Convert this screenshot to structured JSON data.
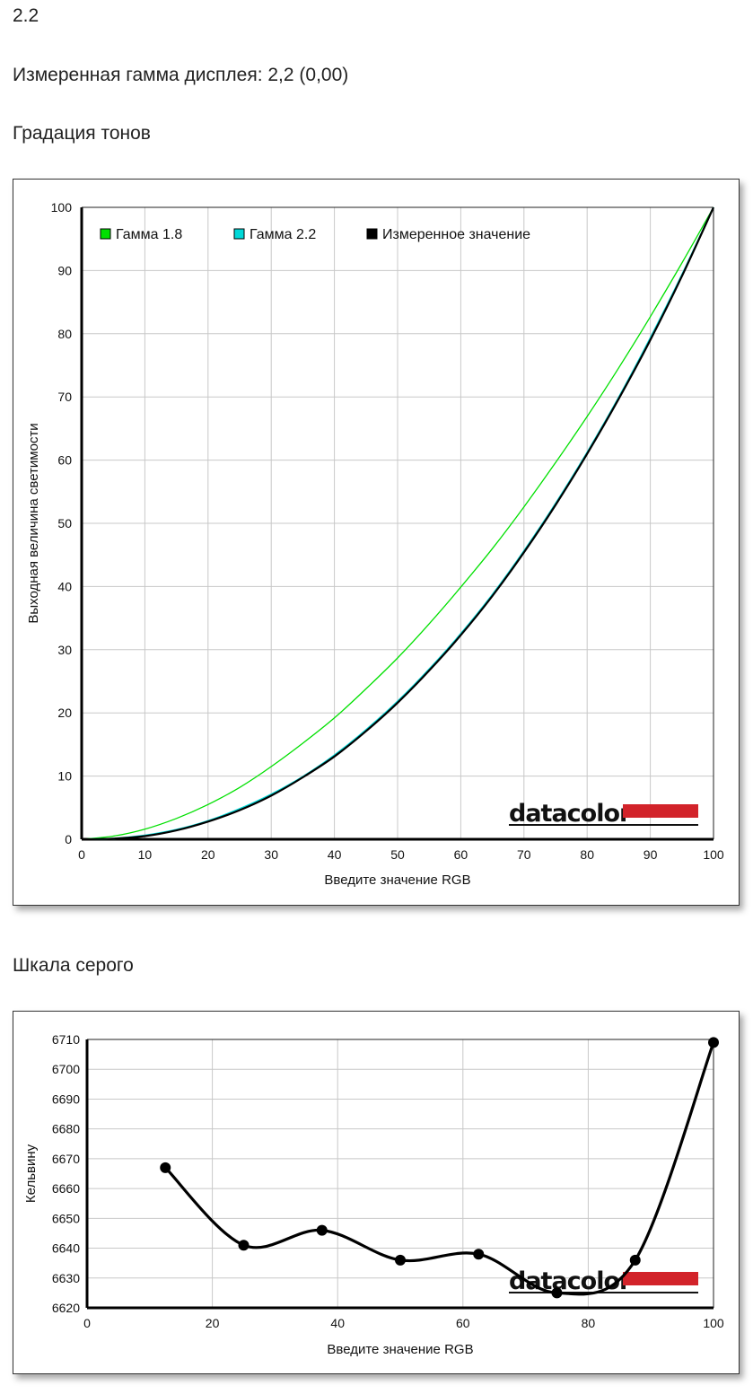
{
  "header": {
    "gamma_value": "2.2",
    "measured_text": "Измеренная гамма дисплея: 2,2 (0,00)",
    "tones_title": "Градация тонов",
    "gray_title": "Шкала серого"
  },
  "logo": {
    "text": "datacolor",
    "color": "#d2232a"
  },
  "chart_data": [
    {
      "type": "line",
      "xlabel": "Введите значение RGB",
      "ylabel": "Выходная величина светимости",
      "xlim": [
        0,
        100
      ],
      "ylim": [
        0,
        100
      ],
      "xticks": [
        0,
        10,
        20,
        30,
        40,
        50,
        60,
        70,
        80,
        90,
        100
      ],
      "yticks": [
        0,
        10,
        20,
        30,
        40,
        50,
        60,
        70,
        80,
        90,
        100
      ],
      "grid": true,
      "legend_position": "top-left",
      "x": [
        0,
        5,
        10,
        15,
        20,
        25,
        30,
        35,
        40,
        45,
        50,
        55,
        60,
        65,
        70,
        75,
        80,
        85,
        90,
        95,
        100
      ],
      "series": [
        {
          "name": "Гамма 1.8",
          "color": "#00e000",
          "values": [
            0,
            0.5,
            1.6,
            3.3,
            5.5,
            8.2,
            11.5,
            15.2,
            19.2,
            23.8,
            28.7,
            34.1,
            39.9,
            46.0,
            52.6,
            59.6,
            66.9,
            74.6,
            82.7,
            91.2,
            100
          ]
        },
        {
          "name": "Гамма 2.2",
          "color": "#00d8d8",
          "values": [
            0,
            0.1,
            0.6,
            1.5,
            2.9,
            4.8,
            7.1,
            9.9,
            13.3,
            17.3,
            21.8,
            26.9,
            32.5,
            38.7,
            45.6,
            53.1,
            61.2,
            69.9,
            79.3,
            89.3,
            100
          ]
        },
        {
          "name": "Измеренное значение",
          "color": "#000000",
          "values": [
            0,
            0.1,
            0.5,
            1.4,
            2.8,
            4.6,
            6.9,
            9.8,
            13.1,
            17.1,
            21.6,
            26.7,
            32.3,
            38.5,
            45.4,
            52.9,
            61.0,
            69.7,
            79.0,
            89.1,
            100
          ]
        }
      ]
    },
    {
      "type": "line",
      "xlabel": "Введите значение RGB",
      "ylabel": "Кельвину",
      "xlim": [
        0,
        100
      ],
      "ylim": [
        6620,
        6710
      ],
      "xticks": [
        0,
        20,
        40,
        60,
        80,
        100
      ],
      "yticks": [
        6620,
        6630,
        6640,
        6650,
        6660,
        6670,
        6680,
        6690,
        6700,
        6710
      ],
      "grid": true,
      "series": [
        {
          "color": "#000000",
          "x": [
            12.5,
            25,
            37.5,
            50,
            62.5,
            75,
            87.5,
            100
          ],
          "values": [
            6667,
            6641,
            6646,
            6636,
            6638,
            6625,
            6636,
            6709
          ]
        }
      ]
    }
  ]
}
